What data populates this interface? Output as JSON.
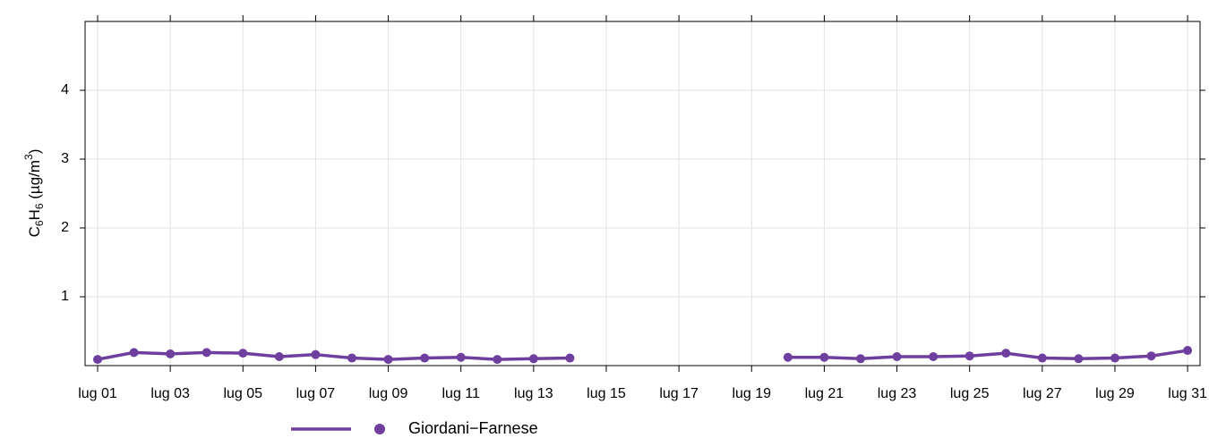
{
  "chart_data": {
    "type": "line",
    "ylabel": [
      "C",
      "6",
      "H",
      "6",
      " (µg/m",
      "3",
      ")"
    ],
    "categories": [
      "lug 01",
      null,
      "lug 03",
      null,
      "lug 05",
      null,
      "lug 07",
      null,
      "lug 09",
      null,
      "lug 11",
      null,
      "lug 13",
      null,
      "lug 15",
      null,
      "lug 17",
      null,
      "lug 19",
      null,
      "lug 21",
      null,
      "lug 23",
      null,
      "lug 25",
      null,
      "lug 27",
      null,
      "lug 29",
      null,
      "lug 31"
    ],
    "series": [
      {
        "name": "Giordani−Farnese",
        "color": "#6f3f9f",
        "values": [
          0.09,
          0.19,
          0.17,
          0.19,
          0.18,
          0.13,
          0.16,
          0.11,
          0.09,
          0.11,
          0.12,
          0.09,
          0.1,
          0.11,
          null,
          null,
          null,
          null,
          null,
          0.12,
          0.12,
          0.1,
          0.13,
          0.13,
          0.14,
          0.18,
          0.11,
          0.1,
          0.11,
          0.14,
          0.22
        ]
      }
    ],
    "ylim": [
      0,
      5
    ],
    "yticks": [
      1,
      2,
      3,
      4
    ],
    "grid": true,
    "legend": "bottom"
  }
}
